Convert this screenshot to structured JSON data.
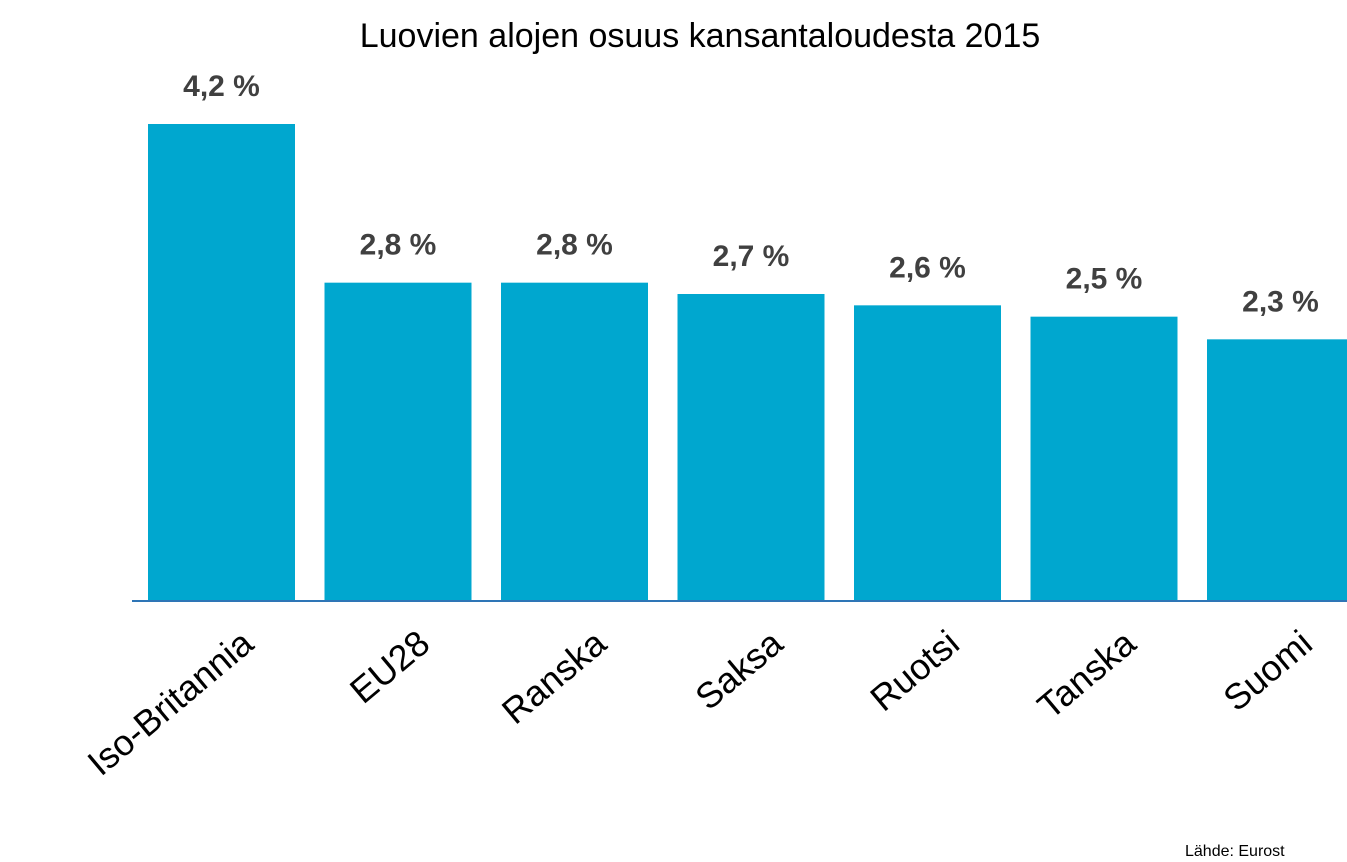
{
  "chart_data": {
    "type": "bar",
    "title": "Luovien alojen osuus kansantaloudesta 2015",
    "categories": [
      "Iso-Britannia",
      "EU28",
      "Ranska",
      "Saksa",
      "Ruotsi",
      "Tanska",
      "Suomi"
    ],
    "values": [
      4.2,
      2.8,
      2.8,
      2.7,
      2.6,
      2.5,
      2.3
    ],
    "value_labels": [
      "4,2 %",
      "2,8 %",
      "2,8 %",
      "2,7 %",
      "2,6 %",
      "2,5 %",
      "2,3 %"
    ],
    "color": "#00a7cf",
    "source": "Lähde: Eurost"
  }
}
